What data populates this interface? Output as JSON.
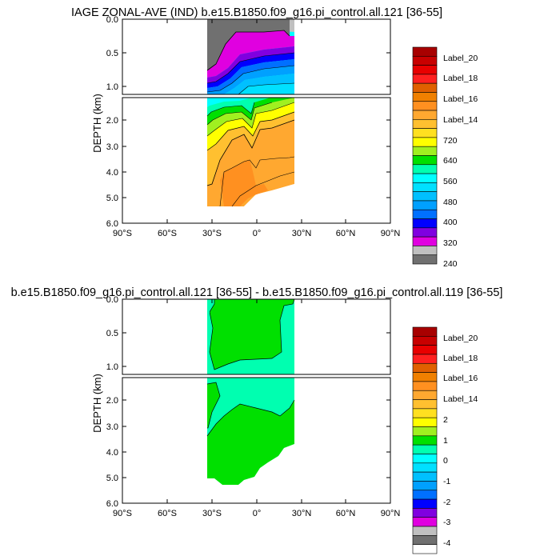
{
  "chart_data": [
    {
      "type": "heatmap",
      "title": "IAGE ZONAL-AVE (IND) b.e15.B1850.f09_g16.pi_control.all.121 [36-55]",
      "ylabel": "DEPTH (km)",
      "x_ticks": [
        "90°S",
        "60°S",
        "30°S",
        "0°",
        "30°N",
        "60°N",
        "90°N"
      ],
      "x_tick_values": [
        -90,
        -60,
        -30,
        0,
        30,
        60,
        90
      ],
      "y_ticks_upper": [
        "0.0",
        "0.5",
        "1.0"
      ],
      "y_ticks_lower": [
        "2.0",
        "3.0",
        "4.0",
        "5.0",
        "6.0"
      ],
      "colorbar_labels": [
        "Label_20",
        "Label_18",
        "Label_16",
        "Label_14",
        "720",
        "640",
        "560",
        "480",
        "400",
        "320",
        "240"
      ],
      "colorbar_colors": [
        "#a80000",
        "#c80000",
        "#e80000",
        "#ff2020",
        "#e06000",
        "#f08000",
        "#ff9020",
        "#ffa830",
        "#ffc030",
        "#ffe020",
        "#ffff00",
        "#a0f020",
        "#00e000",
        "#00ffb0",
        "#00ffff",
        "#00e0ff",
        "#00c0ff",
        "#00a0ff",
        "#0070ff",
        "#0000ff",
        "#8000e0",
        "#e000e0",
        "#c0c0c0",
        "#707070"
      ],
      "data_extent": {
        "lat": [
          -33,
          25
        ],
        "depth_km": [
          0,
          5.4
        ]
      }
    },
    {
      "type": "heatmap",
      "title": "b.e15.B1850.f09_g16.pi_control.all.121 [36-55] - b.e15.B1850.f09_g16.pi_control.all.119 [36-55]",
      "ylabel": "DEPTH (km)",
      "x_ticks": [
        "90°S",
        "60°S",
        "30°S",
        "0°",
        "30°N",
        "60°N",
        "90°N"
      ],
      "x_tick_values": [
        -90,
        -60,
        -30,
        0,
        30,
        60,
        90
      ],
      "y_ticks_upper": [
        "0.0",
        "0.5",
        "1.0"
      ],
      "y_ticks_lower": [
        "2.0",
        "3.0",
        "4.0",
        "5.0",
        "6.0"
      ],
      "colorbar_labels": [
        "Label_20",
        "Label_18",
        "Label_16",
        "Label_14",
        "2",
        "1",
        "0",
        "-1",
        "-2",
        "-3",
        "-4"
      ],
      "colorbar_colors": [
        "#a80000",
        "#c80000",
        "#e80000",
        "#ff2020",
        "#e06000",
        "#f08000",
        "#ff9020",
        "#ffa830",
        "#ffc030",
        "#ffe020",
        "#ffff00",
        "#a0f020",
        "#00e000",
        "#00ffb0",
        "#00ffff",
        "#00e0ff",
        "#00c0ff",
        "#00a0ff",
        "#0070ff",
        "#0000ff",
        "#8000e0",
        "#e000e0",
        "#c0c0c0",
        "#707070",
        "#ffffff"
      ],
      "data_extent": {
        "lat": [
          -33,
          25
        ],
        "depth_km": [
          0,
          5.4
        ]
      }
    }
  ]
}
